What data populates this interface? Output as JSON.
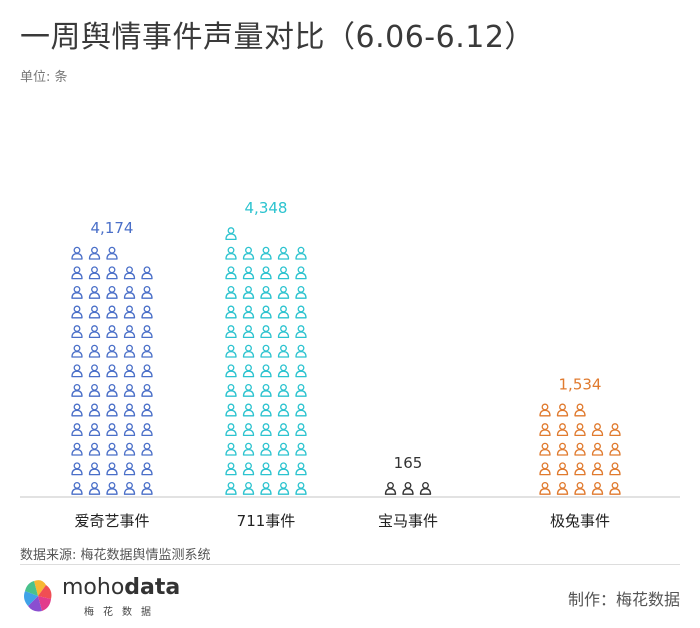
{
  "title": "一周舆情事件声量对比（6.06-6.12）",
  "unit_label": "单位: 条",
  "chart_data": {
    "type": "bar",
    "style": "pictograph (person icons)",
    "categories": [
      "爱奇艺事件",
      "711事件",
      "宝马事件",
      "极兔事件"
    ],
    "values": [
      4174,
      4348,
      165,
      1534
    ],
    "value_labels": [
      "4,174",
      "4,348",
      "165",
      "1,534"
    ],
    "colors": [
      "#4a6fc8",
      "#2cc3cf",
      "#333333",
      "#e07a2e"
    ],
    "title": "一周舆情事件声量对比（6.06-6.12）",
    "xlabel": "",
    "ylabel": ""
  },
  "source": "数据来源: 梅花数据舆情监测系统",
  "brand": {
    "name_light": "moho",
    "name_bold": "data",
    "sub": "梅花数据"
  },
  "producer": "制作：梅花数据"
}
